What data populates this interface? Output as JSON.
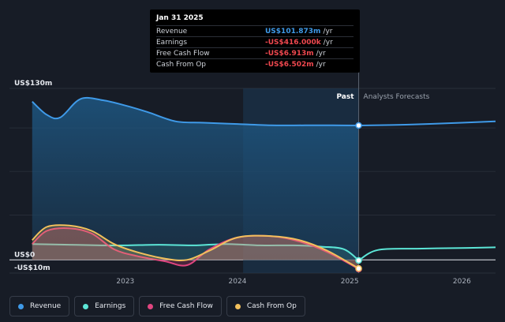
{
  "tooltip": {
    "date": "Jan 31 2025",
    "rows": [
      {
        "label": "Revenue",
        "value": "US$101.873m",
        "unit": "/yr",
        "color": "#3f9ae8"
      },
      {
        "label": "Earnings",
        "value": "-US$416.000k",
        "unit": "/yr",
        "color": "#f0484f"
      },
      {
        "label": "Free Cash Flow",
        "value": "-US$6.913m",
        "unit": "/yr",
        "color": "#f0484f"
      },
      {
        "label": "Cash From Op",
        "value": "-US$6.502m",
        "unit": "/yr",
        "color": "#f0484f"
      }
    ]
  },
  "labels": {
    "past": "Past",
    "forecast": "Analysts Forecasts"
  },
  "chart_data": {
    "type": "area",
    "y_axis": {
      "min": -10,
      "max": 130,
      "tick_labels": [
        {
          "value": 130,
          "label": "US$130m"
        },
        {
          "value": 0,
          "label": "US$0"
        },
        {
          "value": -10,
          "label": "-US$10m"
        }
      ]
    },
    "x_axis": {
      "min": 2022.15,
      "max": 2026.3,
      "tick_labels": [
        {
          "value": 2023,
          "label": "2023"
        },
        {
          "value": 2024,
          "label": "2024"
        },
        {
          "value": 2025,
          "label": "2025"
        },
        {
          "value": 2026,
          "label": "2026"
        }
      ]
    },
    "grid": true,
    "past_forecast_split": 2025.08,
    "highlight_start": 2024.05,
    "series": [
      {
        "name": "Revenue",
        "color": "#3f9ae8",
        "x": [
          2022.17,
          2022.3,
          2022.42,
          2022.6,
          2022.8,
          2023.0,
          2023.2,
          2023.45,
          2023.7,
          2024.0,
          2024.3,
          2024.6,
          2024.85,
          2025.08
        ],
        "y": [
          120,
          110,
          108,
          122,
          121,
          117,
          112,
          105,
          104,
          103,
          102,
          102,
          102,
          101.9
        ],
        "forecast_x": [
          2025.08,
          2025.5,
          2026.0,
          2026.3
        ],
        "forecast_y": [
          101.9,
          102.5,
          104,
          105
        ]
      },
      {
        "name": "Earnings",
        "color": "#5ce6d7",
        "x": [
          2022.17,
          2022.5,
          2022.8,
          2023.0,
          2023.3,
          2023.6,
          2023.9,
          2024.2,
          2024.5,
          2024.75,
          2024.95,
          2025.08
        ],
        "y": [
          12,
          11.5,
          11,
          11,
          11.5,
          11,
          12,
          11,
          11,
          10,
          8,
          -0.4
        ],
        "forecast_x": [
          2025.08,
          2025.25,
          2025.6,
          2026.0,
          2026.3
        ],
        "forecast_y": [
          -0.4,
          7.5,
          8.5,
          9,
          9.5
        ]
      },
      {
        "name": "Free Cash Flow",
        "color": "#e0457f",
        "x": [
          2022.17,
          2022.3,
          2022.5,
          2022.7,
          2022.9,
          2023.1,
          2023.35,
          2023.55,
          2023.75,
          2024.0,
          2024.3,
          2024.55,
          2024.8,
          2025.08
        ],
        "y": [
          12,
          22,
          24,
          20,
          8,
          3,
          -1,
          -4,
          8,
          17,
          18,
          14,
          6,
          -6.9
        ]
      },
      {
        "name": "Cash From Op",
        "color": "#f2c05c",
        "x": [
          2022.17,
          2022.3,
          2022.5,
          2022.7,
          2022.9,
          2023.1,
          2023.35,
          2023.55,
          2023.75,
          2024.0,
          2024.3,
          2024.55,
          2024.8,
          2025.08
        ],
        "y": [
          15,
          25,
          26,
          22,
          12,
          6,
          1,
          0,
          7,
          17,
          18,
          15,
          7,
          -6.5
        ]
      }
    ]
  },
  "legend": [
    {
      "label": "Revenue",
      "color": "#3f9ae8"
    },
    {
      "label": "Earnings",
      "color": "#5ce6d7"
    },
    {
      "label": "Free Cash Flow",
      "color": "#e0457f"
    },
    {
      "label": "Cash From Op",
      "color": "#f2c05c"
    }
  ]
}
